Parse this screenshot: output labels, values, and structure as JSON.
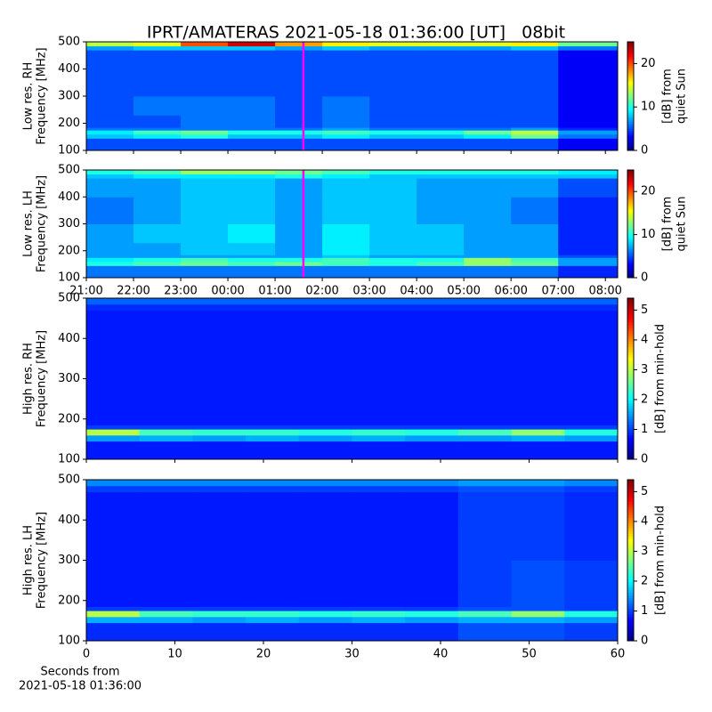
{
  "chart_data": [
    {
      "type": "heatmap",
      "title": "IPRT/AMATERAS 2021-05-18 01:36:00 [UT]   08bit",
      "ylabel": [
        "Low res. RH",
        "Frequency [MHz]"
      ],
      "cmap": "jet",
      "xlim": [
        21,
        32.26
      ],
      "xticks": [
        21,
        22,
        23,
        24,
        25,
        26,
        27,
        28,
        29,
        30,
        31,
        32
      ],
      "xticklabels": false,
      "ylim": [
        100,
        500
      ],
      "yticks": [
        100,
        200,
        300,
        400,
        500
      ],
      "marker_x": 25.6,
      "marker_color": "#ff00ff",
      "xbins": [
        21,
        22,
        23,
        24,
        25,
        26,
        27,
        28,
        29,
        30,
        31,
        32.26
      ],
      "ybins": [
        100,
        145,
        160,
        175,
        185,
        230,
        300,
        400,
        470,
        485,
        500
      ],
      "z": [
        [
          5,
          5,
          5,
          5,
          5,
          5,
          5,
          5,
          5,
          5,
          3
        ],
        [
          8,
          9,
          10,
          8,
          8,
          9,
          8,
          8,
          9,
          12,
          6
        ],
        [
          9,
          11,
          12,
          10,
          10,
          11,
          10,
          10,
          12,
          14,
          7
        ],
        [
          6,
          6,
          6,
          6,
          6,
          7,
          6,
          6,
          6,
          7,
          4
        ],
        [
          5,
          5,
          6,
          6,
          5,
          6,
          5,
          5,
          5,
          5,
          3
        ],
        [
          5,
          6,
          6,
          6,
          5,
          6,
          5,
          5,
          5,
          5,
          3
        ],
        [
          5,
          5,
          5,
          5,
          5,
          5,
          5,
          5,
          5,
          5,
          3
        ],
        [
          5,
          5,
          5,
          5,
          5,
          5,
          5,
          5,
          5,
          5,
          3
        ],
        [
          7,
          8,
          8,
          8,
          7,
          8,
          7,
          7,
          7,
          8,
          6
        ],
        [
          14,
          15,
          20,
          23,
          18,
          16,
          15,
          15,
          15,
          16,
          12
        ]
      ],
      "colorbar": {
        "label": [
          "[dB] from",
          "quiet Sun"
        ],
        "lim": [
          0,
          25
        ],
        "ticks": [
          0,
          10,
          20
        ]
      }
    },
    {
      "type": "heatmap",
      "ylabel": [
        "Low res. LH",
        "Frequency [MHz]"
      ],
      "cmap": "jet",
      "xlim": [
        21,
        32.26
      ],
      "xticks": [
        {
          "value": 21,
          "label": "21:00"
        },
        {
          "value": 22,
          "label": "22:00"
        },
        {
          "value": 23,
          "label": "23:00"
        },
        {
          "value": 24,
          "label": "00:00"
        },
        {
          "value": 25,
          "label": "01:00"
        },
        {
          "value": 26,
          "label": "02:00"
        },
        {
          "value": 27,
          "label": "03:00"
        },
        {
          "value": 28,
          "label": "04:00"
        },
        {
          "value": 29,
          "label": "05:00"
        },
        {
          "value": 30,
          "label": "06:00"
        },
        {
          "value": 31,
          "label": "07:00"
        },
        {
          "value": 32,
          "label": "08:00"
        }
      ],
      "xticklabels": true,
      "ylim": [
        100,
        500
      ],
      "yticks": [
        100,
        200,
        300,
        400,
        500
      ],
      "marker_x": 25.6,
      "marker_color": "#ff00ff",
      "xbins": [
        21,
        22,
        23,
        24,
        25,
        26,
        27,
        28,
        29,
        30,
        31,
        32.26
      ],
      "ybins": [
        100,
        145,
        160,
        175,
        185,
        230,
        300,
        400,
        470,
        485,
        500
      ],
      "z": [
        [
          6,
          6,
          6,
          6,
          6,
          6,
          6,
          6,
          6,
          6,
          4
        ],
        [
          10,
          11,
          12,
          11,
          12,
          11,
          10,
          11,
          13,
          12,
          7
        ],
        [
          9,
          10,
          11,
          10,
          10,
          11,
          10,
          10,
          13,
          11,
          7
        ],
        [
          7,
          7,
          7,
          7,
          7,
          8,
          7,
          7,
          7,
          7,
          5
        ],
        [
          7,
          7,
          8,
          8,
          7,
          9,
          8,
          8,
          7,
          7,
          4
        ],
        [
          7,
          8,
          8,
          9,
          7,
          9,
          8,
          8,
          7,
          7,
          4
        ],
        [
          6,
          7,
          8,
          8,
          7,
          8,
          8,
          7,
          7,
          6,
          4
        ],
        [
          7,
          7,
          8,
          8,
          7,
          8,
          8,
          7,
          7,
          7,
          5
        ],
        [
          8,
          9,
          9,
          9,
          10,
          9,
          8,
          8,
          8,
          8,
          8
        ],
        [
          10,
          11,
          13,
          13,
          12,
          11,
          10,
          10,
          10,
          10,
          9
        ]
      ],
      "colorbar": {
        "label": [
          "[dB] from",
          "quiet Sun"
        ],
        "lim": [
          0,
          25
        ],
        "ticks": [
          0,
          10,
          20
        ]
      }
    },
    {
      "type": "heatmap",
      "ylabel": [
        "High res. RH",
        "Frequency [MHz]"
      ],
      "cmap": "jet",
      "xlim": [
        0,
        60
      ],
      "xticks": [
        0,
        10,
        20,
        30,
        40,
        50,
        60
      ],
      "xticklabels": false,
      "ylim": [
        100,
        500
      ],
      "yticks": [
        100,
        200,
        300,
        400,
        500
      ],
      "xbins": [
        0,
        6,
        12,
        18,
        24,
        30,
        36,
        42,
        48,
        54,
        60
      ],
      "ybins": [
        100,
        145,
        160,
        175,
        185,
        230,
        300,
        400,
        470,
        485,
        500
      ],
      "z": [
        [
          0.8,
          0.8,
          0.8,
          0.8,
          0.8,
          0.8,
          0.8,
          0.8,
          0.8,
          0.8
        ],
        [
          1.5,
          1.6,
          1.5,
          1.6,
          1.5,
          1.6,
          1.5,
          1.5,
          1.6,
          1.5
        ],
        [
          3,
          2.4,
          2.3,
          2.3,
          2.2,
          2.3,
          2.2,
          2.4,
          2.8,
          2.2
        ],
        [
          1,
          1,
          1,
          1,
          1,
          1,
          1,
          1,
          1,
          1
        ],
        [
          0.8,
          0.8,
          0.8,
          0.8,
          0.8,
          0.8,
          0.8,
          0.8,
          0.8,
          0.8
        ],
        [
          0.8,
          0.8,
          0.8,
          0.8,
          0.8,
          0.8,
          0.8,
          0.8,
          0.8,
          0.8
        ],
        [
          0.8,
          0.8,
          0.8,
          0.8,
          0.8,
          0.8,
          0.8,
          0.8,
          0.8,
          0.8
        ],
        [
          0.8,
          0.8,
          0.8,
          0.8,
          0.8,
          0.8,
          0.8,
          0.8,
          0.8,
          0.8
        ],
        [
          0.9,
          0.9,
          0.9,
          0.9,
          0.9,
          0.9,
          0.9,
          0.9,
          0.9,
          0.9
        ],
        [
          1.2,
          1.2,
          1.2,
          1.2,
          1.2,
          1.2,
          1.2,
          1.2,
          1.2,
          1.2
        ]
      ],
      "colorbar": {
        "label": [
          "[dB] from min-hold"
        ],
        "lim": [
          0,
          5.4
        ],
        "ticks": [
          0,
          1,
          2,
          3,
          4,
          5
        ]
      }
    },
    {
      "type": "heatmap",
      "ylabel": [
        "High res. LH",
        "Frequency [MHz]"
      ],
      "cmap": "jet",
      "xlim": [
        0,
        60
      ],
      "xticks": [
        0,
        10,
        20,
        30,
        40,
        50,
        60
      ],
      "xticklabels": true,
      "xlabel": [
        "Seconds from",
        "2021-05-18 01:36:00"
      ],
      "ylim": [
        100,
        500
      ],
      "yticks": [
        100,
        200,
        300,
        400,
        500
      ],
      "xbins": [
        0,
        6,
        12,
        18,
        24,
        30,
        36,
        42,
        48,
        54,
        60
      ],
      "ybins": [
        100,
        145,
        160,
        175,
        185,
        230,
        300,
        400,
        470,
        485,
        500
      ],
      "z": [
        [
          0.9,
          0.9,
          0.9,
          0.9,
          0.9,
          0.9,
          0.9,
          1.1,
          1.1,
          1
        ],
        [
          1.6,
          1.6,
          1.5,
          1.6,
          1.5,
          1.6,
          1.5,
          1.6,
          1.6,
          1.5
        ],
        [
          3,
          2.4,
          2.3,
          2.3,
          2.2,
          2.3,
          2.2,
          2.4,
          2.8,
          2.2
        ],
        [
          1,
          1,
          1,
          1,
          1,
          1,
          1,
          1.1,
          1.1,
          1
        ],
        [
          0.8,
          0.8,
          0.8,
          0.8,
          0.8,
          0.8,
          0.8,
          1,
          1.1,
          1
        ],
        [
          0.8,
          0.8,
          0.8,
          0.8,
          0.8,
          0.8,
          0.8,
          1,
          1.1,
          1
        ],
        [
          0.8,
          0.8,
          0.8,
          0.8,
          0.8,
          0.8,
          0.8,
          1,
          1,
          0.9
        ],
        [
          0.8,
          0.8,
          0.8,
          0.8,
          0.8,
          0.8,
          0.8,
          1,
          1,
          0.9
        ],
        [
          1,
          1,
          1,
          1,
          1,
          1,
          1,
          1.1,
          1.1,
          1
        ],
        [
          1.4,
          1.4,
          1.4,
          1.4,
          1.4,
          1.4,
          1.4,
          1.5,
          1.5,
          1.4
        ]
      ],
      "colorbar": {
        "label": [
          "[dB] from min-hold"
        ],
        "lim": [
          0,
          5.4
        ],
        "ticks": [
          0,
          1,
          2,
          3,
          4,
          5
        ]
      }
    }
  ]
}
